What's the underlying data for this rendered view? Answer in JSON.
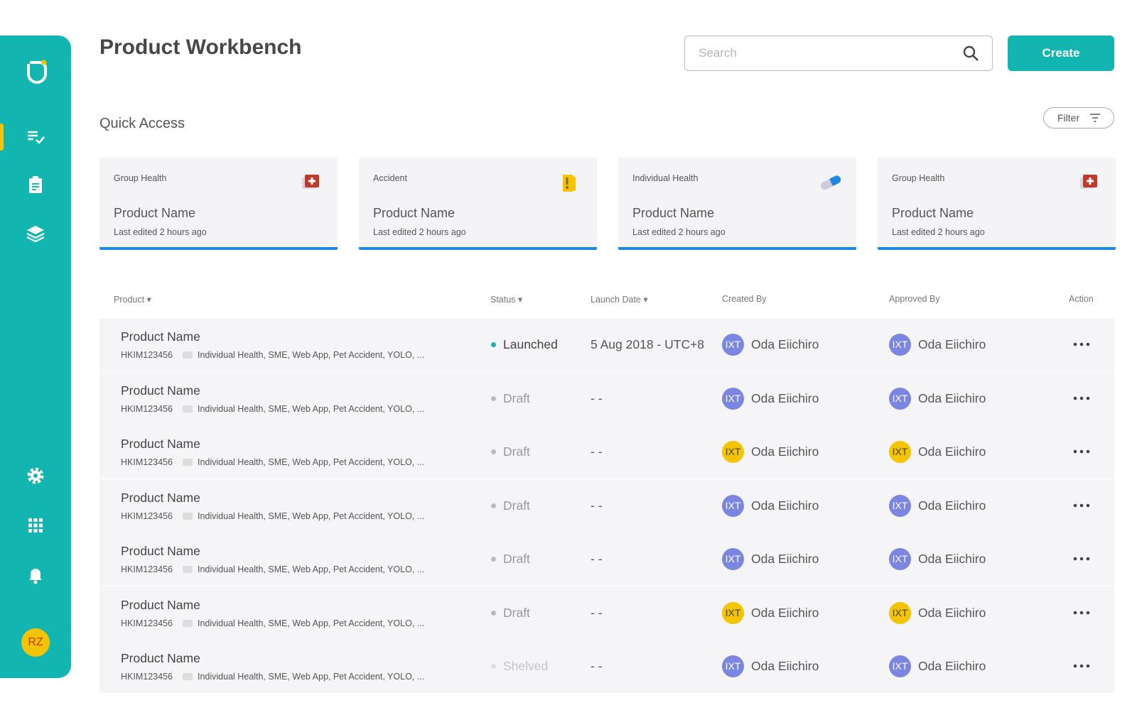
{
  "sidebar": {
    "user_initials": "RZ"
  },
  "header": {
    "title": "Product Workbench",
    "search_placeholder": "Search",
    "create_button": "Create"
  },
  "quick_access": {
    "title": "Quick Access",
    "filter_button": "Filter",
    "cards": [
      {
        "category": "Group Health",
        "name": "Product Name",
        "edited": "Last edited 2 hours ago"
      },
      {
        "category": "Accident",
        "name": "Product Name",
        "edited": "Last edited 2 hours ago"
      },
      {
        "category": "Individual Health",
        "name": "Product Name",
        "edited": "Last edited 2 hours ago"
      },
      {
        "category": "Group Health",
        "name": "Product Name",
        "edited": "Last edited 2 hours ago"
      }
    ]
  },
  "table": {
    "headers": [
      "Product ▾",
      "Status ▾",
      "Launch Date ▾",
      "Created By",
      "Approved By",
      "Action"
    ],
    "rows": [
      {
        "name": "Product Name",
        "code": "HKIM123456",
        "tags": "Individual Health, SME, Web App, Pet Accident, YOLO, ...",
        "status": "Launched",
        "status_color": "#13b5b1",
        "launch_date": "5 Aug 2018 - UTC+8",
        "created_by": {
          "initials": "IXT",
          "name": "Oda Eiichiro",
          "color": "#7b86e0"
        },
        "approved_by": {
          "initials": "IXT",
          "name": "Oda Eiichiro",
          "color": "#7b86e0"
        }
      },
      {
        "name": "Product Name",
        "code": "HKIM123456",
        "tags": "Individual Health, SME, Web App, Pet Accident, YOLO, ...",
        "status": "Draft",
        "status_color": "#bbbbbb",
        "launch_date": "- -",
        "created_by": {
          "initials": "IXT",
          "name": "Oda Eiichiro",
          "color": "#7b86e0"
        },
        "approved_by": {
          "initials": "IXT",
          "name": "Oda Eiichiro",
          "color": "#7b86e0"
        }
      },
      {
        "name": "Product Name",
        "code": "HKIM123456",
        "tags": "Individual Health, SME, Web App, Pet Accident, YOLO, ...",
        "status": "Draft",
        "status_color": "#bbbbbb",
        "launch_date": "- -",
        "created_by": {
          "initials": "IXT",
          "name": "Oda Eiichiro",
          "color": "#f5c400"
        },
        "approved_by": {
          "initials": "IXT",
          "name": "Oda Eiichiro",
          "color": "#f5c400"
        }
      },
      {
        "name": "Product Name",
        "code": "HKIM123456",
        "tags": "Individual Health, SME, Web App, Pet Accident, YOLO, ...",
        "status": "Draft",
        "status_color": "#bbbbbb",
        "launch_date": "- -",
        "created_by": {
          "initials": "IXT",
          "name": "Oda Eiichiro",
          "color": "#7b86e0"
        },
        "approved_by": {
          "initials": "IXT",
          "name": "Oda Eiichiro",
          "color": "#7b86e0"
        }
      },
      {
        "name": "Product Name",
        "code": "HKIM123456",
        "tags": "Individual Health, SME, Web App, Pet Accident, YOLO, ...",
        "status": "Draft",
        "status_color": "#bbbbbb",
        "launch_date": "- -",
        "created_by": {
          "initials": "IXT",
          "name": "Oda Eiichiro",
          "color": "#7b86e0"
        },
        "approved_by": {
          "initials": "IXT",
          "name": "Oda Eiichiro",
          "color": "#7b86e0"
        }
      },
      {
        "name": "Product Name",
        "code": "HKIM123456",
        "tags": "Individual Health, SME, Web App, Pet Accident, YOLO, ...",
        "status": "Draft",
        "status_color": "#bbbbbb",
        "launch_date": "- -",
        "created_by": {
          "initials": "IXT",
          "name": "Oda Eiichiro",
          "color": "#f5c400"
        },
        "approved_by": {
          "initials": "IXT",
          "name": "Oda Eiichiro",
          "color": "#f5c400"
        }
      },
      {
        "name": "Product Name",
        "code": "HKIM123456",
        "tags": "Individual Health, SME, Web App, Pet Accident, YOLO, ...",
        "status": "Shelved",
        "status_color": "#dddddd",
        "launch_date": "- -",
        "created_by": {
          "initials": "IXT",
          "name": "Oda Eiichiro",
          "color": "#7b86e0"
        },
        "approved_by": {
          "initials": "IXT",
          "name": "Oda Eiichiro",
          "color": "#7b86e0"
        }
      }
    ]
  }
}
